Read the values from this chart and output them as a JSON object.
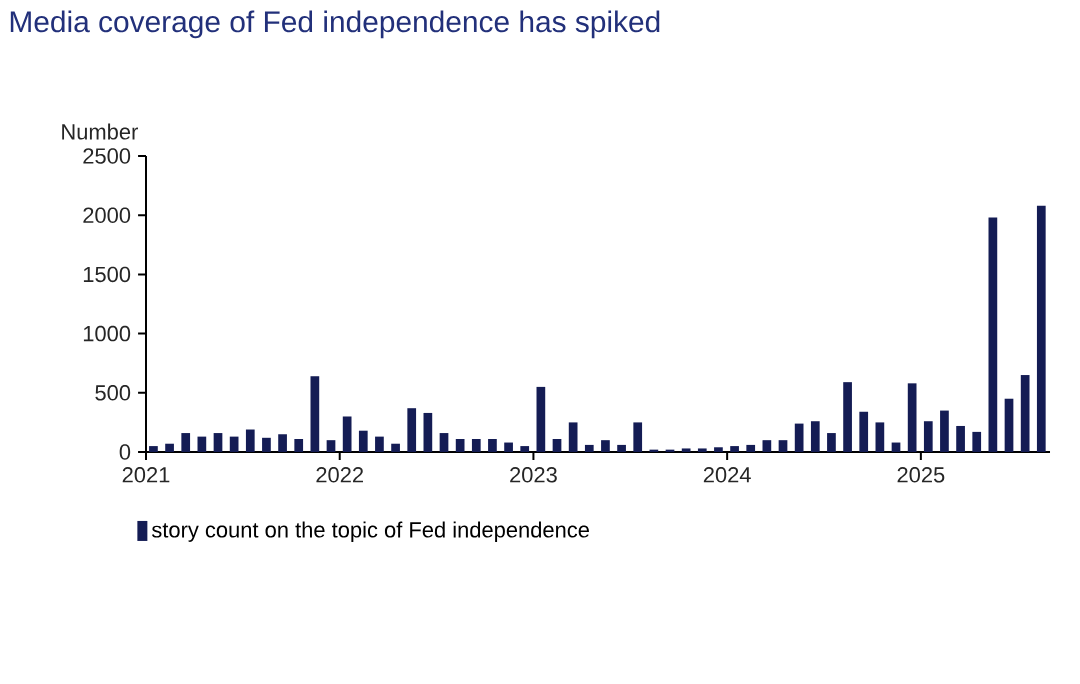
{
  "chart_data": {
    "type": "bar",
    "title": "Media coverage of Fed independence has spiked",
    "ylabel": "Number",
    "x": [
      "2021-01-15",
      "2021-02-15",
      "2021-03-15",
      "2021-04-15",
      "2021-05-15",
      "2021-06-15",
      "2021-07-15",
      "2021-08-15",
      "2021-09-15",
      "2021-10-15",
      "2021-11-15",
      "2021-12-15",
      "2022-01-15",
      "2022-02-15",
      "2022-03-15",
      "2022-04-15",
      "2022-05-15",
      "2022-06-15",
      "2022-07-15",
      "2022-08-15",
      "2022-09-15",
      "2022-10-15",
      "2022-11-15",
      "2022-12-15",
      "2023-01-15",
      "2023-02-15",
      "2023-03-15",
      "2023-04-15",
      "2023-05-15",
      "2023-06-15",
      "2023-07-15",
      "2023-08-15",
      "2023-09-15",
      "2023-10-15",
      "2023-11-15",
      "2023-12-15",
      "2024-01-15",
      "2024-02-15",
      "2024-03-15",
      "2024-04-15",
      "2024-05-15",
      "2024-06-15",
      "2024-07-15",
      "2024-08-15",
      "2024-09-15",
      "2024-10-15",
      "2024-11-15",
      "2024-12-15",
      "2025-01-15",
      "2025-02-15",
      "2025-03-15",
      "2025-04-15",
      "2025-05-15",
      "2025-06-15",
      "2025-07-15",
      "2025-08-15"
    ],
    "series": [
      {
        "name": "story count on the topic of Fed independence",
        "color": "#141c54",
        "values": [
          50,
          70,
          160,
          130,
          160,
          130,
          190,
          120,
          150,
          110,
          640,
          100,
          300,
          180,
          130,
          70,
          370,
          330,
          160,
          110,
          110,
          110,
          80,
          50,
          550,
          110,
          250,
          60,
          100,
          60,
          250,
          20,
          20,
          30,
          30,
          40,
          50,
          60,
          100,
          100,
          240,
          260,
          160,
          590,
          340,
          250,
          80,
          580,
          260,
          350,
          220,
          170,
          1980,
          450,
          650,
          2080
        ]
      }
    ],
    "xlim": [
      "2021-01",
      "2025-09"
    ],
    "xticks": [
      {
        "value": "2021",
        "label": "2021"
      },
      {
        "value": "2022",
        "label": "2022"
      },
      {
        "value": "2023",
        "label": "2023"
      },
      {
        "value": "2024",
        "label": "2024"
      },
      {
        "value": "2025",
        "label": "2025"
      }
    ],
    "ylim": [
      0,
      2500
    ],
    "yticks": [
      0,
      500,
      1000,
      1500,
      2000,
      2500
    ],
    "grid": false,
    "legend": "bottom"
  }
}
